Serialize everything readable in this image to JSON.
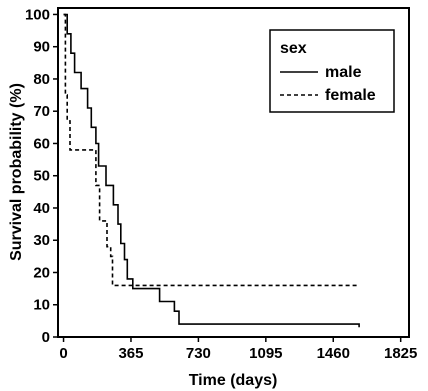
{
  "chart_data": {
    "type": "line",
    "step": true,
    "xlabel": "Time (days)",
    "ylabel": "Survival probability (%)",
    "xlim": [
      -30,
      1870
    ],
    "ylim": [
      0,
      102
    ],
    "xticks": [
      0,
      365,
      730,
      1095,
      1460,
      1825
    ],
    "yticks": [
      0,
      10,
      20,
      30,
      40,
      50,
      60,
      70,
      80,
      90,
      100
    ],
    "legend": {
      "title": "sex",
      "position": "top-right"
    },
    "series": [
      {
        "name": "male",
        "dash": "solid",
        "points": [
          [
            0,
            100
          ],
          [
            20,
            100
          ],
          [
            20,
            94
          ],
          [
            40,
            94
          ],
          [
            40,
            88
          ],
          [
            60,
            88
          ],
          [
            60,
            82
          ],
          [
            95,
            82
          ],
          [
            95,
            77
          ],
          [
            130,
            77
          ],
          [
            130,
            71
          ],
          [
            150,
            71
          ],
          [
            150,
            65
          ],
          [
            175,
            65
          ],
          [
            175,
            60
          ],
          [
            190,
            60
          ],
          [
            190,
            53
          ],
          [
            230,
            53
          ],
          [
            230,
            47
          ],
          [
            270,
            47
          ],
          [
            270,
            41
          ],
          [
            295,
            41
          ],
          [
            295,
            35
          ],
          [
            310,
            35
          ],
          [
            310,
            29
          ],
          [
            330,
            29
          ],
          [
            330,
            24
          ],
          [
            345,
            24
          ],
          [
            345,
            18
          ],
          [
            375,
            18
          ],
          [
            375,
            15
          ],
          [
            460,
            15
          ],
          [
            460,
            15
          ],
          [
            520,
            15
          ],
          [
            520,
            11
          ],
          [
            600,
            11
          ],
          [
            600,
            8
          ],
          [
            625,
            8
          ],
          [
            625,
            4
          ],
          [
            1600,
            4
          ],
          [
            1600,
            3
          ]
        ]
      },
      {
        "name": "female",
        "dash": "dashed",
        "points": [
          [
            0,
            100
          ],
          [
            10,
            100
          ],
          [
            10,
            75
          ],
          [
            20,
            75
          ],
          [
            20,
            67
          ],
          [
            35,
            67
          ],
          [
            35,
            58
          ],
          [
            175,
            58
          ],
          [
            175,
            47
          ],
          [
            195,
            47
          ],
          [
            195,
            36
          ],
          [
            235,
            36
          ],
          [
            235,
            28
          ],
          [
            255,
            28
          ],
          [
            255,
            25
          ],
          [
            265,
            25
          ],
          [
            265,
            16
          ],
          [
            1600,
            16
          ]
        ]
      }
    ]
  }
}
